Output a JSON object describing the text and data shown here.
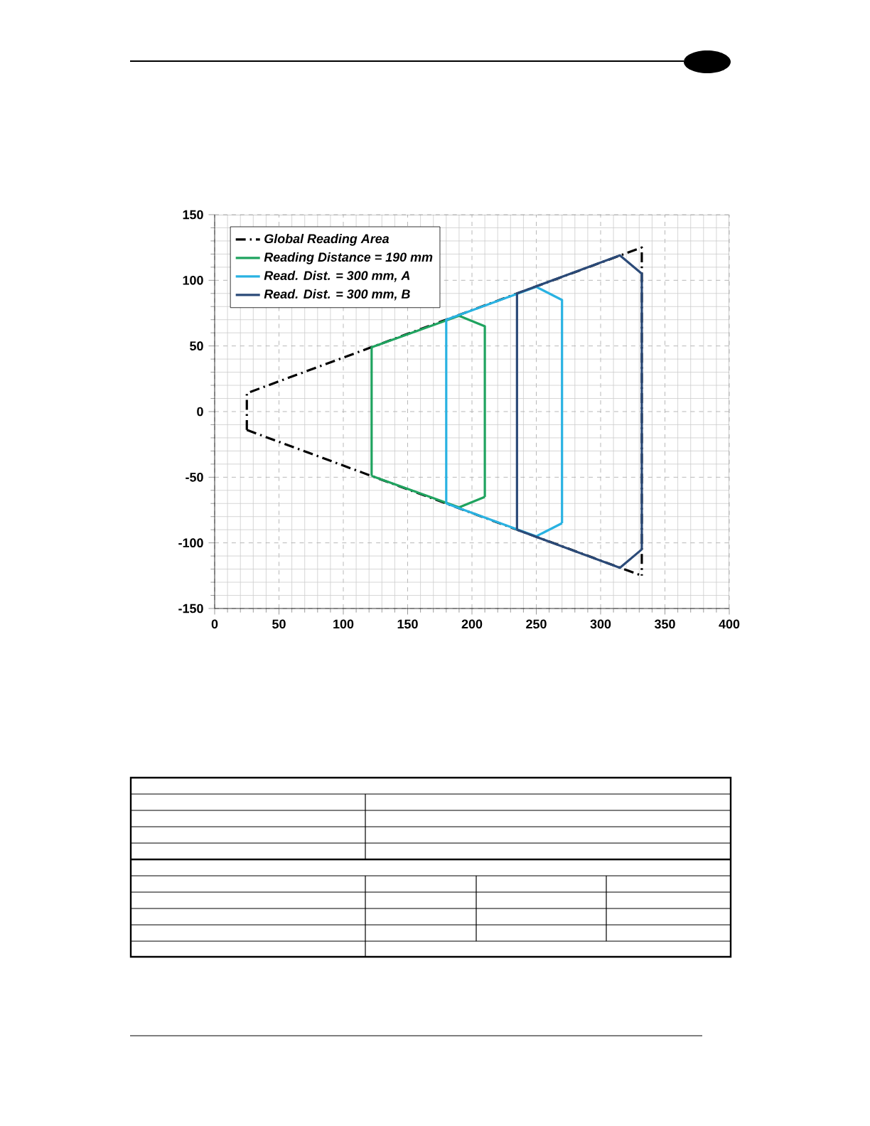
{
  "chart_data": {
    "type": "line",
    "xlim": [
      0,
      400
    ],
    "ylim": [
      -150,
      150
    ],
    "xticks": [
      0,
      50,
      100,
      150,
      200,
      250,
      300,
      350,
      400
    ],
    "yticks": [
      -150,
      -100,
      -50,
      0,
      50,
      100,
      150
    ],
    "grid": true,
    "legend": "top left",
    "marker": "none",
    "series": [
      {
        "name": "Global Reading Area",
        "color": "#000000",
        "line_style": "dashdot",
        "x": [
          25,
          25,
          332,
          332
        ],
        "values": [
          -14,
          14,
          125,
          -125
        ]
      },
      {
        "color": "#000000",
        "line_style": "dashdot",
        "x": [
          25,
          332
        ],
        "values": [
          -14,
          -125
        ]
      },
      {
        "name": "Reading Distance = 190 mm",
        "color": "#1fa35f",
        "line_style": "solid",
        "x": [
          122,
          122,
          190,
          210,
          210
        ],
        "values": [
          -49,
          49,
          73,
          65,
          -65
        ]
      },
      {
        "color": "#1fa35f",
        "line_style": "solid",
        "x": [
          122,
          190,
          210
        ],
        "values": [
          -49,
          -73,
          -65
        ]
      },
      {
        "name": "Read. Dist. = 300 mm, A",
        "color": "#29b2e2",
        "line_style": "solid",
        "x": [
          180,
          180,
          250,
          270,
          270
        ],
        "values": [
          -70,
          70,
          95,
          85,
          -85
        ]
      },
      {
        "color": "#29b2e2",
        "line_style": "solid",
        "x": [
          180,
          250,
          270
        ],
        "values": [
          -70,
          -95,
          -85
        ]
      },
      {
        "name": "Read. Dist. = 300 mm, B",
        "color": "#2b4a78",
        "line_style": "solid",
        "x": [
          235,
          235,
          315,
          332,
          332
        ],
        "values": [
          -90,
          90,
          119,
          105,
          -105
        ]
      },
      {
        "color": "#2b4a78",
        "line_style": "solid",
        "x": [
          235,
          315,
          332
        ],
        "values": [
          -90,
          -119,
          -105
        ]
      }
    ]
  }
}
